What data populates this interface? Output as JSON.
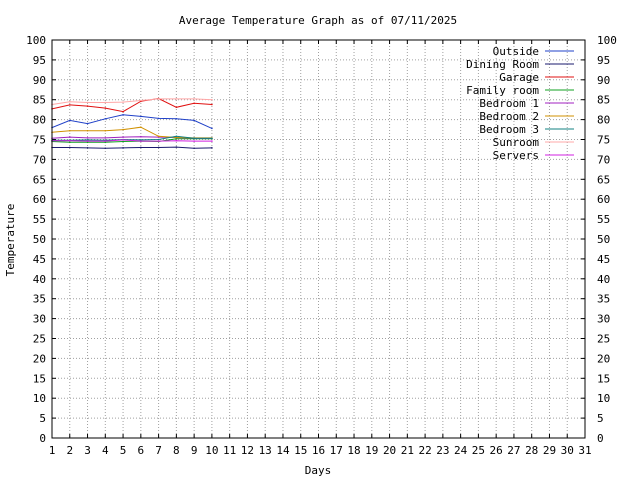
{
  "chart_data": {
    "type": "line",
    "title": "Average Temperature Graph as of 07/11/2025",
    "xlabel": "Days",
    "ylabel": "Temperature",
    "xlim": [
      1,
      31
    ],
    "ylim": [
      0,
      100
    ],
    "x_ticks": [
      1,
      2,
      3,
      4,
      5,
      6,
      7,
      8,
      9,
      10,
      11,
      12,
      13,
      14,
      15,
      16,
      17,
      18,
      19,
      20,
      21,
      22,
      23,
      24,
      25,
      26,
      27,
      28,
      29,
      30,
      31
    ],
    "y_ticks": [
      0,
      5,
      10,
      15,
      20,
      25,
      30,
      35,
      40,
      45,
      50,
      55,
      60,
      65,
      70,
      75,
      80,
      85,
      90,
      95,
      100
    ],
    "y_ticks_right": true,
    "grid": true,
    "legend_position": "top-right",
    "x": [
      1,
      2,
      3,
      4,
      5,
      6,
      7,
      8,
      9,
      10
    ],
    "series": [
      {
        "name": "Outside",
        "color": "#1f40c8",
        "values": [
          78.0,
          79.8,
          79.0,
          80.2,
          81.2,
          80.8,
          80.3,
          80.2,
          79.8,
          77.8
        ]
      },
      {
        "name": "Dining Room",
        "color": "#1a1a6e",
        "values": [
          73.0,
          73.0,
          72.9,
          72.8,
          72.9,
          73.0,
          73.0,
          73.1,
          72.8,
          72.9
        ]
      },
      {
        "name": "Garage",
        "color": "#e01010",
        "values": [
          82.7,
          83.7,
          83.4,
          82.9,
          82.0,
          84.6,
          85.3,
          83.1,
          84.1,
          83.8
        ]
      },
      {
        "name": "Family room",
        "color": "#10a020",
        "values": [
          74.5,
          74.3,
          74.3,
          74.3,
          74.5,
          74.6,
          74.5,
          75.2,
          75.2,
          75.2
        ]
      },
      {
        "name": "Bedroom 1",
        "color": "#a020c0",
        "values": [
          75.3,
          75.6,
          75.4,
          75.4,
          75.6,
          75.7,
          75.6,
          75.5,
          75.3,
          75.3
        ]
      },
      {
        "name": "Bedroom 2",
        "color": "#d09000",
        "values": [
          76.8,
          77.2,
          77.2,
          77.2,
          77.5,
          78.1,
          75.8,
          75.5,
          75.4,
          75.4
        ]
      },
      {
        "name": "Bedroom 3",
        "color": "#108080",
        "values": [
          74.8,
          74.8,
          74.9,
          74.8,
          75.0,
          74.9,
          75.0,
          75.8,
          75.3,
          75.3
        ]
      },
      {
        "name": "Sunroom",
        "color": "#ffa8a8",
        "values": [
          83.8,
          84.5,
          84.3,
          84.3,
          84.4,
          84.8,
          85.2,
          85.2,
          85.2,
          85.0
        ]
      },
      {
        "name": "Servers",
        "color": "#d020e0",
        "values": [
          74.7,
          74.7,
          74.6,
          74.6,
          74.9,
          74.6,
          74.6,
          74.7,
          74.6,
          74.6
        ]
      }
    ]
  }
}
